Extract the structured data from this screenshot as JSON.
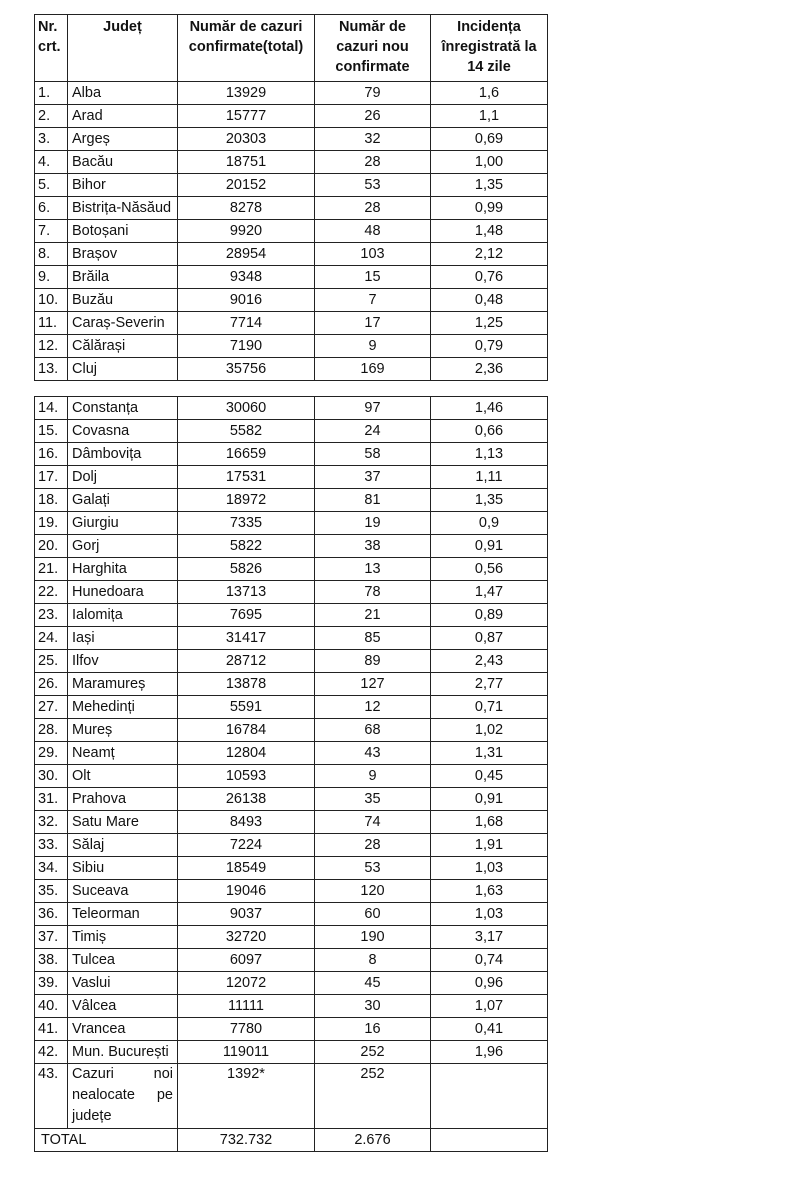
{
  "headers": [
    "Nr. crt.",
    "Județ",
    "Număr de cazuri confirmate(total)",
    "Număr de cazuri nou confirmate",
    "Incidența înregistrată la 14 zile"
  ],
  "rows_part1": [
    [
      "1.",
      "Alba",
      "13929",
      "79",
      "1,6"
    ],
    [
      "2.",
      "Arad",
      "15777",
      "26",
      "1,1"
    ],
    [
      "3.",
      "Argeș",
      "20303",
      "32",
      "0,69"
    ],
    [
      "4.",
      "Bacău",
      "18751",
      "28",
      "1,00"
    ],
    [
      "5.",
      "Bihor",
      "20152",
      "53",
      "1,35"
    ],
    [
      "6.",
      "Bistrița-Năsăud",
      "8278",
      "28",
      "0,99"
    ],
    [
      "7.",
      "Botoșani",
      "9920",
      "48",
      "1,48"
    ],
    [
      "8.",
      "Brașov",
      "28954",
      "103",
      "2,12"
    ],
    [
      "9.",
      "Brăila",
      "9348",
      "15",
      "0,76"
    ],
    [
      "10.",
      "Buzău",
      "9016",
      "7",
      "0,48"
    ],
    [
      "11.",
      "Caraș-Severin",
      "7714",
      "17",
      "1,25"
    ],
    [
      "12.",
      "Călărași",
      "7190",
      "9",
      "0,79"
    ],
    [
      "13.",
      "Cluj",
      "35756",
      "169",
      "2,36"
    ]
  ],
  "rows_part2": [
    [
      "14.",
      "Constanța",
      "30060",
      "97",
      "1,46"
    ],
    [
      "15.",
      "Covasna",
      "5582",
      "24",
      "0,66"
    ],
    [
      "16.",
      "Dâmbovița",
      "16659",
      "58",
      "1,13"
    ],
    [
      "17.",
      "Dolj",
      "17531",
      "37",
      "1,11"
    ],
    [
      "18.",
      "Galați",
      "18972",
      "81",
      "1,35"
    ],
    [
      "19.",
      "Giurgiu",
      "7335",
      "19",
      "0,9"
    ],
    [
      "20.",
      "Gorj",
      "5822",
      "38",
      "0,91"
    ],
    [
      "21.",
      "Harghita",
      "5826",
      "13",
      "0,56"
    ],
    [
      "22.",
      "Hunedoara",
      "13713",
      "78",
      "1,47"
    ],
    [
      "23.",
      "Ialomița",
      "7695",
      "21",
      "0,89"
    ],
    [
      "24.",
      "Iași",
      "31417",
      "85",
      "0,87"
    ],
    [
      "25.",
      "Ilfov",
      "28712",
      "89",
      "2,43"
    ],
    [
      "26.",
      "Maramureș",
      "13878",
      "127",
      "2,77"
    ],
    [
      "27.",
      "Mehedinți",
      "5591",
      "12",
      "0,71"
    ],
    [
      "28.",
      "Mureș",
      "16784",
      "68",
      "1,02"
    ],
    [
      "29.",
      "Neamț",
      "12804",
      "43",
      "1,31"
    ],
    [
      "30.",
      "Olt",
      "10593",
      "9",
      "0,45"
    ],
    [
      "31.",
      "Prahova",
      "26138",
      "35",
      "0,91"
    ],
    [
      "32.",
      "Satu Mare",
      "8493",
      "74",
      "1,68"
    ],
    [
      "33.",
      "Sălaj",
      "7224",
      "28",
      "1,91"
    ],
    [
      "34.",
      "Sibiu",
      "18549",
      "53",
      "1,03"
    ],
    [
      "35.",
      "Suceava",
      "19046",
      "120",
      "1,63"
    ],
    [
      "36.",
      "Teleorman",
      "9037",
      "60",
      "1,03"
    ],
    [
      "37.",
      "Timiș",
      "32720",
      "190",
      "3,17"
    ],
    [
      "38.",
      "Tulcea",
      "6097",
      "8",
      "0,74"
    ],
    [
      "39.",
      "Vaslui",
      "12072",
      "45",
      "0,96"
    ],
    [
      "40.",
      "Vâlcea",
      "11111",
      "30",
      "1,07"
    ],
    [
      "41.",
      "Vrancea",
      "7780",
      "16",
      "0,41"
    ],
    [
      "42.",
      "Mun. București",
      "119011",
      "252",
      "1,96"
    ]
  ],
  "unallocated": {
    "nr": "43.",
    "label": "Cazuri noi nealocate pe județe",
    "total": "1392*",
    "new": "252",
    "incidence": ""
  },
  "total": {
    "label": "TOTAL",
    "total": "732.732",
    "new": "2.676"
  }
}
